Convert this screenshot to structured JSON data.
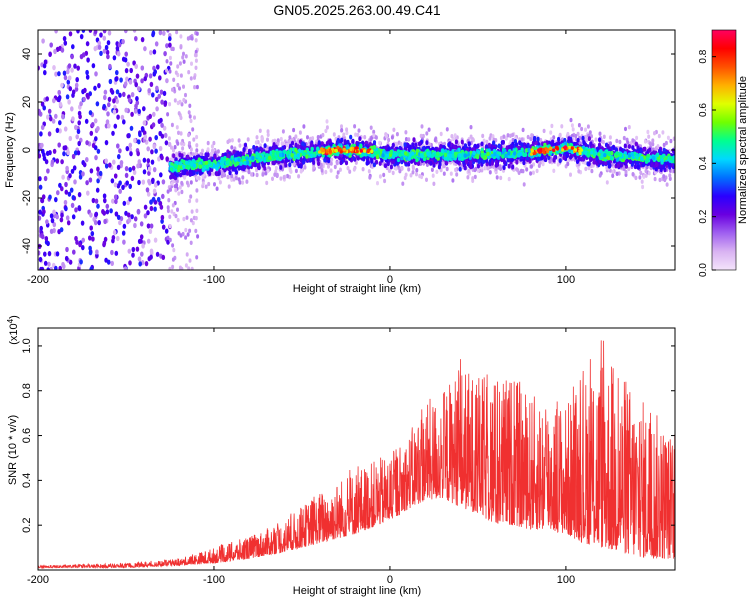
{
  "chart_data": [
    {
      "type": "heatmap",
      "title": "GN05.2025.263.00.49.C41",
      "xlabel": "Height of straight line (km)",
      "ylabel": "Frequency (Hz)",
      "xlim": [
        -200,
        162
      ],
      "ylim": [
        -50,
        50
      ],
      "xticks": [
        -200,
        -100,
        0,
        100
      ],
      "yticks": [
        -40,
        -20,
        0,
        20,
        40
      ],
      "colorbar": {
        "label": "Normalized spectral amplitude",
        "range": [
          0.0,
          0.9
        ],
        "ticks": [
          "0.0",
          "0.2",
          "0.4",
          "0.6",
          "0.8"
        ],
        "colors": [
          "#f4e4fb",
          "#d9b3f2",
          "#a060f0",
          "#6a00e0",
          "#2a00ff",
          "#0070ff",
          "#00d8ff",
          "#00ff90",
          "#70ff00",
          "#e0ff00",
          "#ffb000",
          "#ff5000",
          "#ff0000",
          "#ff0060"
        ]
      },
      "band_center_profile": {
        "x": [
          -125,
          -100,
          -80,
          -60,
          -40,
          -30,
          -20,
          0,
          20,
          40,
          60,
          80,
          100,
          120,
          140,
          162
        ],
        "y": [
          -7,
          -6,
          -4,
          -2,
          -1,
          0,
          0,
          -2,
          -2,
          -2,
          -2,
          -1,
          1,
          -2,
          -3,
          -4
        ]
      }
    },
    {
      "type": "line",
      "xlabel": "Height of straight line (km)",
      "ylabel": "SNR (10 * v/v)",
      "multiplier_label": "(x10",
      "multiplier_exp": "4",
      "multiplier_close": ")",
      "xlim": [
        -200,
        162
      ],
      "ylim": [
        0.0,
        1.08
      ],
      "xticks": [
        -200,
        -100,
        0,
        100
      ],
      "yticks": [
        "0.2",
        "0.4",
        "0.6",
        "0.8",
        "1.0"
      ],
      "color": "#f03030",
      "envelope": {
        "x": [
          -200,
          -150,
          -120,
          -100,
          -80,
          -60,
          -40,
          -20,
          0,
          10,
          20,
          30,
          40,
          50,
          60,
          70,
          80,
          90,
          100,
          110,
          120,
          130,
          140,
          150,
          162
        ],
        "baseline": [
          0.01,
          0.01,
          0.02,
          0.03,
          0.05,
          0.08,
          0.12,
          0.16,
          0.22,
          0.27,
          0.31,
          0.32,
          0.28,
          0.25,
          0.2,
          0.2,
          0.18,
          0.18,
          0.16,
          0.12,
          0.1,
          0.08,
          0.06,
          0.05,
          0.05
        ],
        "peak": [
          0.02,
          0.03,
          0.05,
          0.1,
          0.15,
          0.22,
          0.35,
          0.45,
          0.52,
          0.6,
          0.75,
          0.8,
          0.92,
          0.87,
          0.86,
          0.88,
          0.78,
          0.8,
          0.75,
          0.86,
          1.0,
          0.9,
          0.8,
          0.72,
          0.6
        ]
      }
    }
  ]
}
